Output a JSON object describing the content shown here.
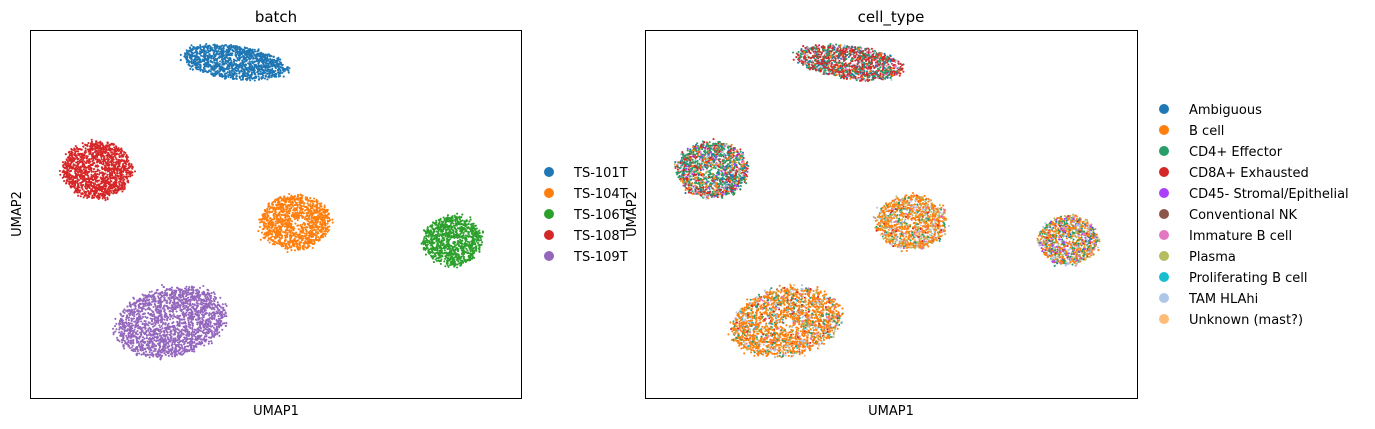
{
  "chart_data": [
    {
      "type": "scatter",
      "title": "batch",
      "xlabel": "UMAP1",
      "ylabel": "UMAP2",
      "grid": false,
      "ticks": false,
      "legend_position": "right",
      "xlim": [
        -2,
        18
      ],
      "ylim": [
        -2,
        12
      ],
      "categories": [
        "TS-101T",
        "TS-104T",
        "TS-106T",
        "TS-108T",
        "TS-109T"
      ],
      "colors": {
        "TS-101T": "#1f77b4",
        "TS-104T": "#ff7f0e",
        "TS-106T": "#2ca02c",
        "TS-108T": "#d62728",
        "TS-109T": "#9467bd"
      },
      "clusters": [
        {
          "category": "TS-101T",
          "center": [
            6.3,
            10.8
          ],
          "spread": [
            2.4,
            0.7
          ],
          "tilt": -0.12,
          "n": 1300
        },
        {
          "category": "TS-108T",
          "center": [
            0.7,
            6.7
          ],
          "spread": [
            1.6,
            1.2
          ],
          "tilt": 0.0,
          "n": 1400
        },
        {
          "category": "TS-104T",
          "center": [
            8.8,
            4.7
          ],
          "spread": [
            1.6,
            1.15
          ],
          "tilt": 0.0,
          "n": 1200
        },
        {
          "category": "TS-106T",
          "center": [
            15.2,
            4.0
          ],
          "spread": [
            1.35,
            1.05
          ],
          "tilt": 0.0,
          "n": 1000
        },
        {
          "category": "TS-109T",
          "center": [
            3.7,
            0.9
          ],
          "spread": [
            2.5,
            1.45
          ],
          "tilt": 0.18,
          "n": 2000
        }
      ]
    },
    {
      "type": "scatter",
      "title": "cell_type",
      "xlabel": "UMAP1",
      "ylabel": "UMAP2",
      "grid": false,
      "ticks": false,
      "legend_position": "right",
      "xlim": [
        -2,
        18
      ],
      "ylim": [
        -2,
        12
      ],
      "categories": [
        "Ambiguous",
        "B cell",
        "CD4+ Effector",
        "CD8A+ Exhausted",
        "CD45- Stromal/Epithelial",
        "Conventional NK",
        "Immature B cell",
        "Plasma",
        "Proliferating B cell",
        "TAM HLAhi",
        "Unknown (mast?)"
      ],
      "colors": {
        "Ambiguous": "#1f77b4",
        "B cell": "#ff7f0e",
        "CD4+ Effector": "#279e68",
        "CD8A+ Exhausted": "#d62728",
        "CD45- Stromal/Epithelial": "#aa40fc",
        "Conventional NK": "#8c564b",
        "Immature B cell": "#e377c2",
        "Plasma": "#b5bd61",
        "Proliferating B cell": "#17becf",
        "TAM HLAhi": "#aec7e8",
        "Unknown (mast?)": "#ffbb78"
      },
      "clusters": [
        {
          "center": [
            6.3,
            10.8
          ],
          "spread": [
            2.4,
            0.7
          ],
          "tilt": -0.12,
          "n": 1300,
          "mix": {
            "CD8A+ Exhausted": 0.42,
            "CD4+ Effector": 0.28,
            "Ambiguous": 0.1,
            "Conventional NK": 0.06,
            "B cell": 0.05,
            "Immature B cell": 0.04,
            "TAM HLAhi": 0.05
          }
        },
        {
          "center": [
            0.7,
            6.7
          ],
          "spread": [
            1.6,
            1.2
          ],
          "tilt": 0.0,
          "n": 1400,
          "mix": {
            "CD4+ Effector": 0.38,
            "CD8A+ Exhausted": 0.22,
            "B cell": 0.12,
            "Ambiguous": 0.08,
            "TAM HLAhi": 0.07,
            "Immature B cell": 0.05,
            "CD45- Stromal/Epithelial": 0.04,
            "Plasma": 0.04
          }
        },
        {
          "center": [
            8.8,
            4.7
          ],
          "spread": [
            1.6,
            1.15
          ],
          "tilt": 0.0,
          "n": 1200,
          "mix": {
            "B cell": 0.55,
            "Plasma": 0.15,
            "TAM HLAhi": 0.1,
            "CD4+ Effector": 0.08,
            "Immature B cell": 0.05,
            "Unknown (mast?)": 0.04,
            "CD8A+ Exhausted": 0.03
          }
        },
        {
          "center": [
            15.2,
            4.0
          ],
          "spread": [
            1.35,
            1.05
          ],
          "tilt": 0.0,
          "n": 1000,
          "mix": {
            "B cell": 0.35,
            "CD4+ Effector": 0.2,
            "TAM HLAhi": 0.12,
            "Plasma": 0.1,
            "CD45- Stromal/Epithelial": 0.08,
            "Immature B cell": 0.06,
            "CD8A+ Exhausted": 0.05,
            "Ambiguous": 0.04
          }
        },
        {
          "center": [
            3.7,
            0.9
          ],
          "spread": [
            2.5,
            1.45
          ],
          "tilt": 0.18,
          "n": 2000,
          "mix": {
            "B cell": 0.62,
            "CD4+ Effector": 0.1,
            "TAM HLAhi": 0.08,
            "Plasma": 0.07,
            "CD8A+ Exhausted": 0.05,
            "Immature B cell": 0.04,
            "Proliferating B cell": 0.02,
            "Unknown (mast?)": 0.02
          }
        }
      ]
    }
  ]
}
